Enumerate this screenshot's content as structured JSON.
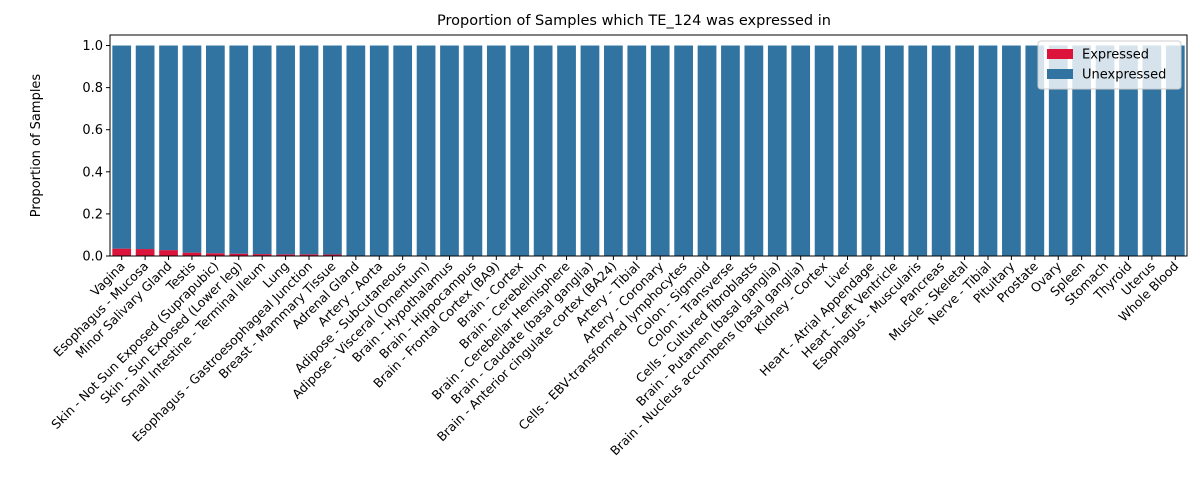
{
  "chart_data": {
    "type": "bar",
    "stacked": true,
    "title": "Proportion of Samples which TE_124 was expressed in",
    "xlabel": "",
    "ylabel": "Proportion of Samples",
    "ylim": [
      0,
      1.05
    ],
    "yticks": [
      "0.0",
      "0.2",
      "0.4",
      "0.6",
      "0.8",
      "1.0"
    ],
    "grid": false,
    "legend_position": "top-right",
    "categories": [
      "Vagina",
      "Esophagus - Mucosa",
      "Minor Salivary Gland",
      "Testis",
      "Skin - Not Sun Exposed (Suprapubic)",
      "Skin - Sun Exposed (Lower leg)",
      "Small Intestine - Terminal Ileum",
      "Lung",
      "Esophagus - Gastroesophageal Junction",
      "Breast - Mammary Tissue",
      "Adrenal Gland",
      "Artery - Aorta",
      "Adipose - Subcutaneous",
      "Adipose - Visceral (Omentum)",
      "Brain - Hypothalamus",
      "Brain - Hippocampus",
      "Brain - Frontal Cortex (BA9)",
      "Brain - Cortex",
      "Brain - Cerebellum",
      "Brain - Cerebellar Hemisphere",
      "Brain - Caudate (basal ganglia)",
      "Brain - Anterior cingulate cortex (BA24)",
      "Artery - Tibial",
      "Artery - Coronary",
      "Cells - EBV-transformed lymphocytes",
      "Colon - Sigmoid",
      "Colon - Transverse",
      "Cells - Cultured fibroblasts",
      "Brain - Putamen (basal ganglia)",
      "Brain - Nucleus accumbens (basal ganglia)",
      "Kidney - Cortex",
      "Liver",
      "Heart - Atrial Appendage",
      "Heart - Left Ventricle",
      "Esophagus - Muscularis",
      "Pancreas",
      "Muscle - Skeletal",
      "Nerve - Tibial",
      "Pituitary",
      "Prostate",
      "Ovary",
      "Spleen",
      "Stomach",
      "Thyroid",
      "Uterus",
      "Whole Blood"
    ],
    "series": [
      {
        "name": "Expressed",
        "color": "#dc143c",
        "values": [
          0.035,
          0.033,
          0.028,
          0.016,
          0.013,
          0.011,
          0.009,
          0.008,
          0.008,
          0.007,
          0,
          0,
          0,
          0,
          0,
          0,
          0,
          0,
          0,
          0,
          0,
          0,
          0,
          0,
          0,
          0,
          0,
          0,
          0,
          0,
          0,
          0,
          0,
          0,
          0,
          0,
          0,
          0,
          0,
          0,
          0,
          0,
          0,
          0,
          0,
          0
        ]
      },
      {
        "name": "Unexpressed",
        "color": "#3274a1",
        "values": [
          0.965,
          0.967,
          0.972,
          0.984,
          0.987,
          0.989,
          0.991,
          0.992,
          0.992,
          0.993,
          1,
          1,
          1,
          1,
          1,
          1,
          1,
          1,
          1,
          1,
          1,
          1,
          1,
          1,
          1,
          1,
          1,
          1,
          1,
          1,
          1,
          1,
          1,
          1,
          1,
          1,
          1,
          1,
          1,
          1,
          1,
          1,
          1,
          1,
          1,
          1
        ]
      }
    ]
  }
}
